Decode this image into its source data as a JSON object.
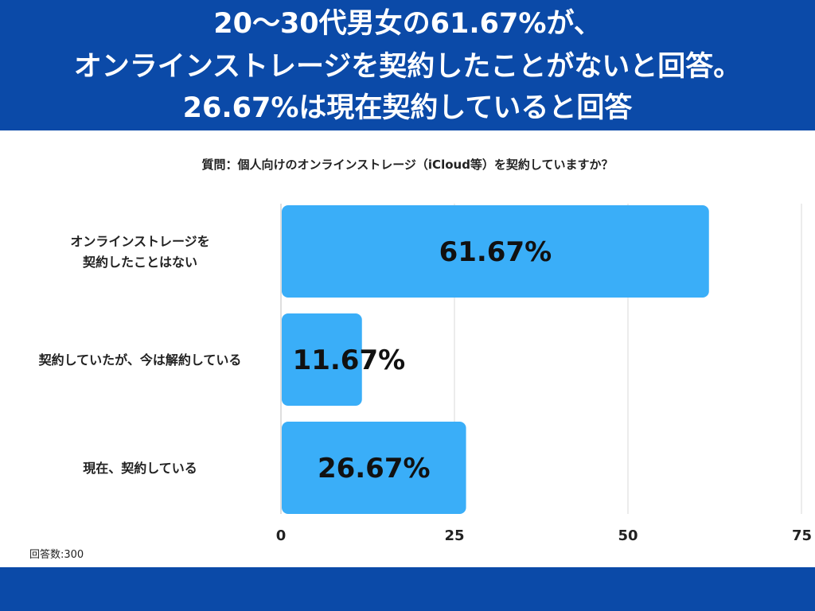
{
  "header": {
    "lines": [
      "20〜30代男女の61.67%が、",
      "オンラインストレージを契約したことがないと回答。",
      "26.67%は現在契約していると回答"
    ]
  },
  "question": "質問：個人向けのオンラインストレージ（iCloud等）を契約していますか？",
  "note": "回答数:300",
  "colors": {
    "header": "#0b4aa8",
    "bar": "#3aaef8",
    "grid": "#d8d8d8"
  },
  "chart_data": {
    "type": "bar",
    "orientation": "horizontal",
    "categories": [
      [
        "オンラインストレージを",
        "契約したことはない"
      ],
      [
        "契約していたが、今は解約している"
      ],
      [
        "現在、契約している"
      ]
    ],
    "values": [
      61.67,
      11.67,
      26.67
    ],
    "data_labels": [
      "61.67%",
      "11.67%",
      "26.67%"
    ],
    "xlim": [
      0,
      75
    ],
    "xticks": [
      0,
      25,
      50,
      75
    ],
    "grid": true,
    "title": "質問：個人向けのオンラインストレージ（iCloud等）を契約していますか？"
  }
}
